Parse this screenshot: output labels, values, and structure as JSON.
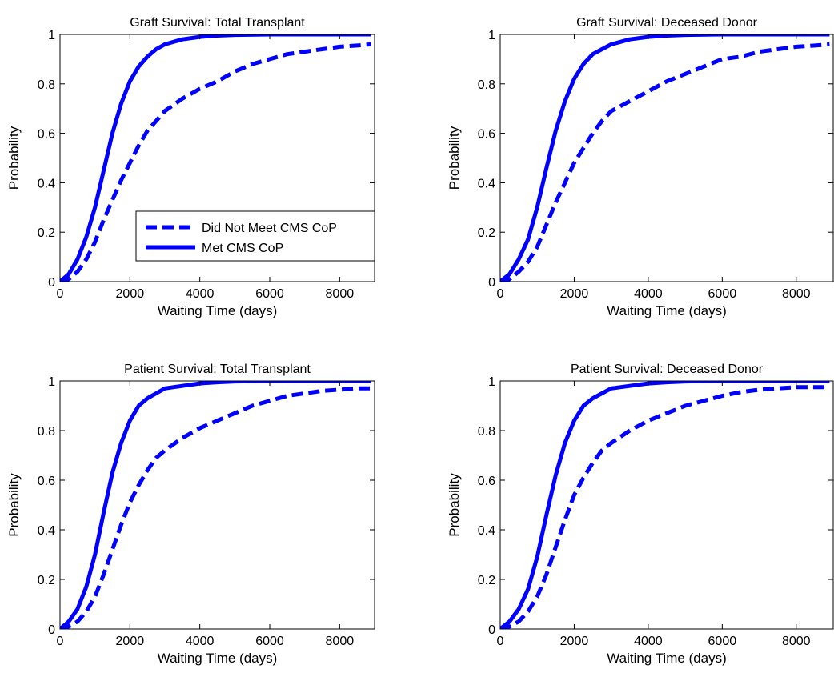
{
  "figure": {
    "line_color": "#0000ff",
    "background": "#ffffff",
    "axes_color": "#000000"
  },
  "chart_data": [
    {
      "type": "line",
      "title": "Graft Survival: Total Transplant",
      "xlabel": "Waiting Time (days)",
      "ylabel": "Probability",
      "xlim": [
        0,
        9000
      ],
      "ylim": [
        0,
        1
      ],
      "xticks": [
        0,
        2000,
        4000,
        6000,
        8000
      ],
      "yticks": [
        0,
        0.2,
        0.4,
        0.6,
        0.8,
        1
      ],
      "xtick_labels": [
        "0",
        "2000",
        "4000",
        "6000",
        "8000"
      ],
      "ytick_labels": [
        "0",
        "0.2",
        "0.4",
        "0.6",
        "0.8",
        "1"
      ],
      "grid": false,
      "legend": {
        "position": "lower-right",
        "entries": [
          "Did Not Meet CMS CoP",
          "Met CMS CoP"
        ]
      },
      "series": [
        {
          "name": "Did Not Meet CMS CoP",
          "style": "dashed",
          "x": [
            0,
            250,
            500,
            750,
            1000,
            1250,
            1500,
            1750,
            2000,
            2250,
            2500,
            2750,
            3000,
            3500,
            4000,
            4500,
            5000,
            5500,
            6000,
            6500,
            7000,
            7500,
            8000,
            8500,
            8900
          ],
          "y": [
            0,
            0.01,
            0.04,
            0.09,
            0.16,
            0.25,
            0.33,
            0.41,
            0.48,
            0.55,
            0.61,
            0.65,
            0.69,
            0.74,
            0.78,
            0.81,
            0.85,
            0.88,
            0.9,
            0.92,
            0.93,
            0.94,
            0.95,
            0.955,
            0.96
          ]
        },
        {
          "name": "Met CMS CoP",
          "style": "solid",
          "x": [
            0,
            250,
            500,
            750,
            1000,
            1250,
            1500,
            1750,
            2000,
            2250,
            2500,
            2750,
            3000,
            3500,
            4000,
            4500,
            5000,
            6000,
            7000,
            8000,
            8900
          ],
          "y": [
            0,
            0.03,
            0.09,
            0.18,
            0.3,
            0.45,
            0.6,
            0.72,
            0.81,
            0.87,
            0.91,
            0.94,
            0.96,
            0.98,
            0.99,
            0.995,
            0.998,
            1,
            1,
            1,
            1
          ]
        }
      ]
    },
    {
      "type": "line",
      "title": "Graft Survival: Deceased Donor",
      "xlabel": "Waiting Time (days)",
      "ylabel": "Probability",
      "xlim": [
        0,
        9000
      ],
      "ylim": [
        0,
        1
      ],
      "xticks": [
        0,
        2000,
        4000,
        6000,
        8000
      ],
      "yticks": [
        0,
        0.2,
        0.4,
        0.6,
        0.8,
        1
      ],
      "xtick_labels": [
        "0",
        "2000",
        "4000",
        "6000",
        "8000"
      ],
      "ytick_labels": [
        "0",
        "0.2",
        "0.4",
        "0.6",
        "0.8",
        "1"
      ],
      "grid": false,
      "series": [
        {
          "name": "Did Not Meet CMS CoP",
          "style": "dashed",
          "x": [
            0,
            250,
            500,
            750,
            1000,
            1250,
            1500,
            1750,
            2000,
            2250,
            2500,
            2750,
            3000,
            3500,
            4000,
            4500,
            5000,
            5500,
            6000,
            6500,
            7000,
            7500,
            8000,
            8500,
            8900
          ],
          "y": [
            0,
            0.01,
            0.04,
            0.08,
            0.14,
            0.23,
            0.32,
            0.4,
            0.48,
            0.54,
            0.6,
            0.65,
            0.69,
            0.73,
            0.77,
            0.81,
            0.84,
            0.87,
            0.9,
            0.91,
            0.93,
            0.94,
            0.95,
            0.955,
            0.96
          ]
        },
        {
          "name": "Met CMS CoP",
          "style": "solid",
          "x": [
            0,
            250,
            500,
            750,
            1000,
            1250,
            1500,
            1750,
            2000,
            2250,
            2500,
            2750,
            3000,
            3500,
            4000,
            4500,
            5000,
            6000,
            7000,
            8000,
            8900
          ],
          "y": [
            0,
            0.03,
            0.09,
            0.17,
            0.3,
            0.46,
            0.61,
            0.73,
            0.82,
            0.88,
            0.92,
            0.94,
            0.96,
            0.98,
            0.99,
            0.995,
            0.998,
            1,
            1,
            1,
            1
          ]
        }
      ]
    },
    {
      "type": "line",
      "title": "Patient Survival: Total Transplant",
      "xlabel": "Waiting Time (days)",
      "ylabel": "Probability",
      "xlim": [
        0,
        9000
      ],
      "ylim": [
        0,
        1
      ],
      "xticks": [
        0,
        2000,
        4000,
        6000,
        8000
      ],
      "yticks": [
        0,
        0.2,
        0.4,
        0.6,
        0.8,
        1
      ],
      "xtick_labels": [
        "0",
        "2000",
        "4000",
        "6000",
        "8000"
      ],
      "ytick_labels": [
        "0",
        "0.2",
        "0.4",
        "0.6",
        "0.8",
        "1"
      ],
      "grid": false,
      "series": [
        {
          "name": "Did Not Meet CMS CoP",
          "style": "dashed",
          "x": [
            0,
            250,
            500,
            750,
            1000,
            1250,
            1500,
            1750,
            2000,
            2250,
            2500,
            2750,
            3000,
            3500,
            4000,
            4500,
            5000,
            5500,
            6000,
            6500,
            7000,
            7500,
            8000,
            8500,
            8900
          ],
          "y": [
            0,
            0.01,
            0.03,
            0.07,
            0.13,
            0.22,
            0.32,
            0.42,
            0.51,
            0.58,
            0.64,
            0.69,
            0.72,
            0.77,
            0.81,
            0.84,
            0.87,
            0.9,
            0.92,
            0.94,
            0.95,
            0.96,
            0.965,
            0.97,
            0.97
          ]
        },
        {
          "name": "Met CMS CoP",
          "style": "solid",
          "x": [
            0,
            250,
            500,
            750,
            1000,
            1250,
            1500,
            1750,
            2000,
            2250,
            2500,
            2750,
            3000,
            3500,
            4000,
            4500,
            5000,
            6000,
            7000,
            8000,
            8900
          ],
          "y": [
            0,
            0.03,
            0.08,
            0.17,
            0.3,
            0.47,
            0.63,
            0.75,
            0.84,
            0.9,
            0.93,
            0.95,
            0.97,
            0.98,
            0.99,
            0.995,
            0.998,
            1,
            1,
            1,
            1
          ]
        }
      ]
    },
    {
      "type": "line",
      "title": "Patient Survival: Deceased Donor",
      "xlabel": "Waiting Time (days)",
      "ylabel": "Probability",
      "xlim": [
        0,
        9000
      ],
      "ylim": [
        0,
        1
      ],
      "xticks": [
        0,
        2000,
        4000,
        6000,
        8000
      ],
      "yticks": [
        0,
        0.2,
        0.4,
        0.6,
        0.8,
        1
      ],
      "xtick_labels": [
        "0",
        "2000",
        "4000",
        "6000",
        "8000"
      ],
      "ytick_labels": [
        "0",
        "0.2",
        "0.4",
        "0.6",
        "0.8",
        "1"
      ],
      "grid": false,
      "series": [
        {
          "name": "Did Not Meet CMS CoP",
          "style": "dashed",
          "x": [
            0,
            250,
            500,
            750,
            1000,
            1250,
            1500,
            1750,
            2000,
            2250,
            2500,
            2750,
            3000,
            3500,
            4000,
            4500,
            5000,
            5500,
            6000,
            6500,
            7000,
            7500,
            8000,
            8500,
            8900
          ],
          "y": [
            0,
            0.01,
            0.03,
            0.07,
            0.13,
            0.22,
            0.33,
            0.44,
            0.54,
            0.61,
            0.67,
            0.72,
            0.75,
            0.8,
            0.84,
            0.87,
            0.9,
            0.92,
            0.94,
            0.955,
            0.965,
            0.97,
            0.975,
            0.975,
            0.975
          ]
        },
        {
          "name": "Met CMS CoP",
          "style": "solid",
          "x": [
            0,
            250,
            500,
            750,
            1000,
            1250,
            1500,
            1750,
            2000,
            2250,
            2500,
            2750,
            3000,
            3500,
            4000,
            4500,
            5000,
            6000,
            7000,
            8000,
            8900
          ],
          "y": [
            0,
            0.03,
            0.08,
            0.16,
            0.29,
            0.46,
            0.62,
            0.75,
            0.84,
            0.9,
            0.93,
            0.95,
            0.97,
            0.98,
            0.99,
            0.995,
            0.998,
            1,
            1,
            1,
            1
          ]
        }
      ]
    }
  ]
}
